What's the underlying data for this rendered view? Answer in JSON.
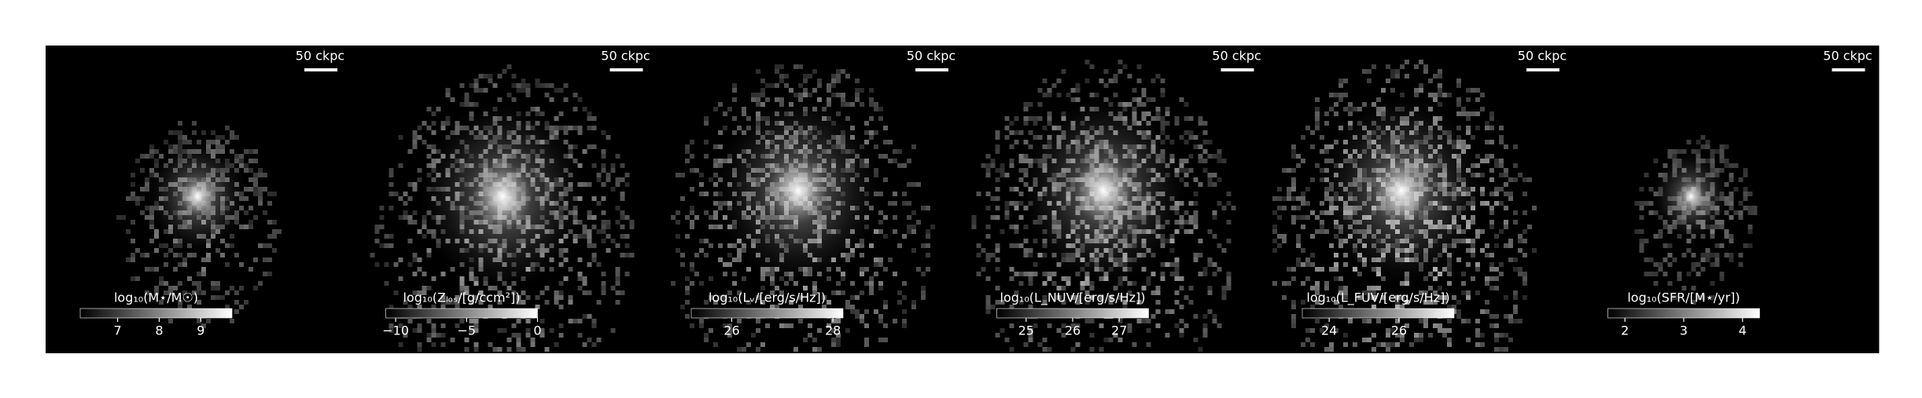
{
  "chart_data": [
    {
      "type": "image",
      "scalebar": "50 ckpc",
      "colorbar_label": "log₁₀(M⋆/M☉)",
      "clim": [
        6.1,
        9.75
      ],
      "cticks": [
        7,
        8,
        9
      ]
    },
    {
      "type": "image",
      "scalebar": "50 ckpc",
      "colorbar_label": "log₁₀(Zₗₒₛ/[g/ccm²])",
      "clim": [
        -10.7,
        0
      ],
      "cticks": [
        {
          "value": -10,
          "label": "−10"
        },
        {
          "value": -5,
          "label": "−5"
        },
        0
      ]
    },
    {
      "type": "image",
      "scalebar": "50 ckpc",
      "colorbar_label": "log₁₀(Lᵥ/[erg/s/Hz])",
      "clim": [
        25.2,
        28.2
      ],
      "cticks": [
        26,
        28
      ]
    },
    {
      "type": "image",
      "scalebar": "50 ckpc",
      "colorbar_label": "log₁₀(L_NUV/[erg/s/Hz])",
      "clim": [
        24.37,
        27.63
      ],
      "cticks": [
        25,
        26,
        27
      ]
    },
    {
      "type": "image",
      "scalebar": "50 ckpc",
      "colorbar_label": "log₁₀(L_FUV/[erg/s/Hz])",
      "clim": [
        23.23,
        27.58
      ],
      "cticks": [
        24,
        26
      ]
    },
    {
      "type": "image",
      "scalebar": "50 ckpc",
      "colorbar_label": "log₁₀(SFR/[M⋆/yr])",
      "clim": [
        1.71,
        4.29
      ],
      "cticks": [
        2,
        3,
        4
      ]
    }
  ]
}
